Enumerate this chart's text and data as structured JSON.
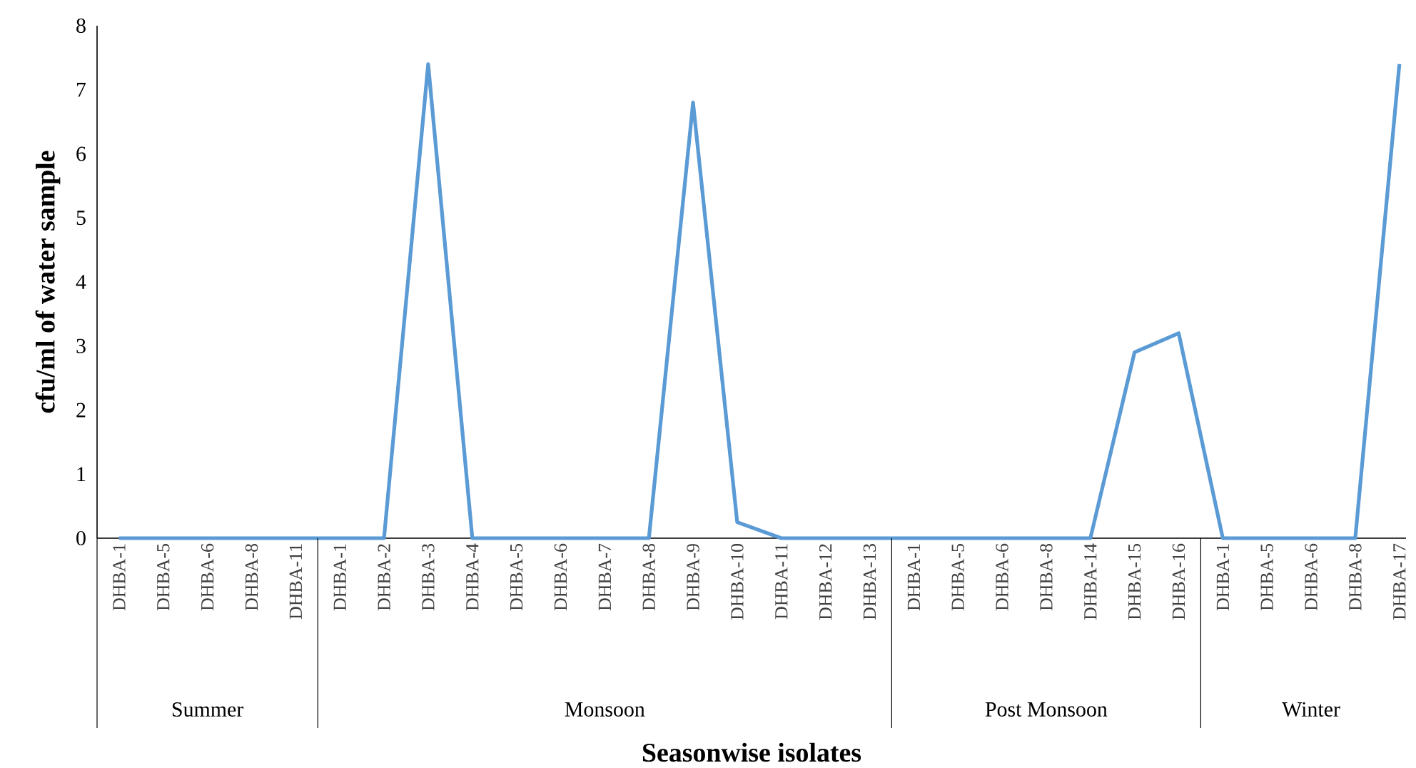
{
  "chart_data": {
    "type": "line",
    "xlabel": "Seasonwise isolates",
    "ylabel": "cfu/ml of water sample",
    "categories": [
      "DHBA-1",
      "DHBA-5",
      "DHBA-6",
      "DHBA-8",
      "DHBA-11",
      "DHBA-1",
      "DHBA-2",
      "DHBA-3",
      "DHBA-4",
      "DHBA-5",
      "DHBA-6",
      "DHBA-7",
      "DHBA-8",
      "DHBA-9",
      "DHBA-10",
      "DHBA-11",
      "DHBA-12",
      "DHBA-13",
      "DHBA-1",
      "DHBA-5",
      "DHBA-6",
      "DHBA-8",
      "DHBA-14",
      "DHBA-15",
      "DHBA-16",
      "DHBA-1",
      "DHBA-5",
      "DHBA-6",
      "DHBA-8",
      "DHBA-17"
    ],
    "values": [
      0,
      0,
      0,
      0,
      0,
      0,
      0,
      7.4,
      0,
      0,
      0,
      0,
      0,
      6.8,
      0.25,
      0,
      0,
      0,
      0,
      0,
      0,
      0,
      0,
      2.9,
      3.2,
      0,
      0,
      0,
      0,
      7.4
    ],
    "color": "#5b9bd5",
    "ylim": [
      0,
      8
    ],
    "yticks": [
      0,
      1,
      2,
      3,
      4,
      5,
      6,
      7,
      8
    ],
    "annotations": [
      "Summer",
      "Monsoon",
      "Post Monsoon",
      "Winter"
    ]
  }
}
